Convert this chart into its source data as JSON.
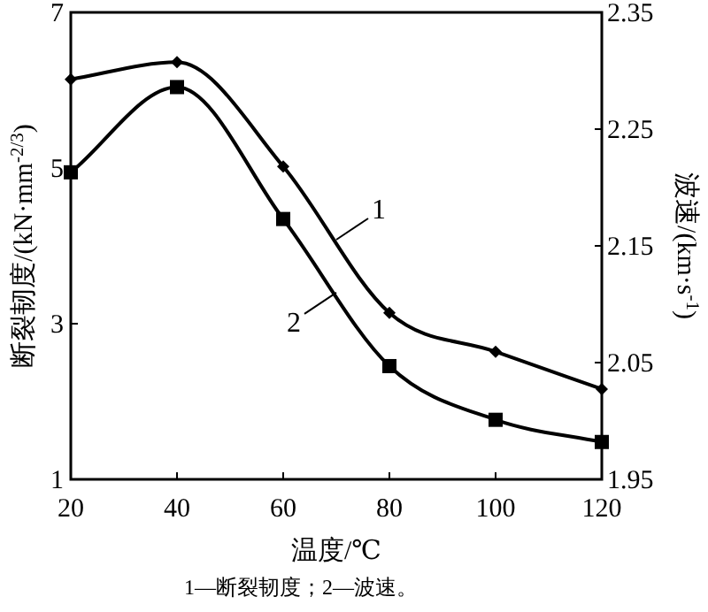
{
  "chart_data": {
    "type": "line",
    "x": [
      20,
      40,
      60,
      80,
      100,
      120
    ],
    "xlim": [
      20,
      120
    ],
    "xticks": [
      20,
      40,
      60,
      80,
      100,
      120
    ],
    "ylim": [
      1,
      7
    ],
    "yticks": [
      1,
      3,
      5,
      7
    ],
    "y2lim": [
      1.95,
      2.35
    ],
    "y2ticks": [
      1.95,
      2.05,
      2.15,
      2.25,
      2.35
    ],
    "xlabel": "温度/℃",
    "ylabel": "断裂韧度/(kN·mm$^{-2/3}$)",
    "y2label": "波速/(km·s$^{-1}$)",
    "annotations": [
      "1—断裂韧度；2—波速。"
    ],
    "series": [
      {
        "name": "1",
        "color": "#000000",
        "marker": "diamond",
        "values": [
          6.14,
          6.36,
          5.02,
          3.14,
          2.64,
          2.16
        ]
      },
      {
        "name": "2",
        "color": "#000000",
        "marker": "square",
        "axis": "y2",
        "values": [
          2.213,
          2.286,
          2.173,
          2.047,
          2.001,
          1.982
        ]
      }
    ]
  }
}
